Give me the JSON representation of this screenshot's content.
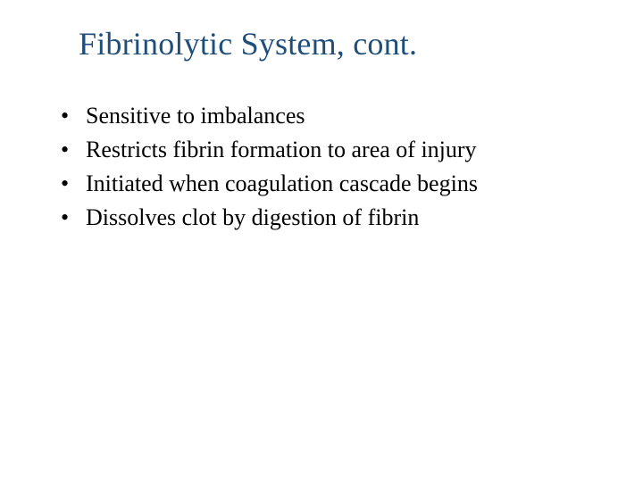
{
  "slide": {
    "title": "Fibrinolytic System, cont.",
    "title_color": "#1f4e79",
    "title_fontsize": 36,
    "body_color": "#000000",
    "body_fontsize": 26,
    "background_color": "#ffffff",
    "bullets": [
      "Sensitive to imbalances",
      "Restricts fibrin formation to area of injury",
      "Initiated when coagulation cascade begins",
      "Dissolves clot by digestion of fibrin"
    ]
  }
}
